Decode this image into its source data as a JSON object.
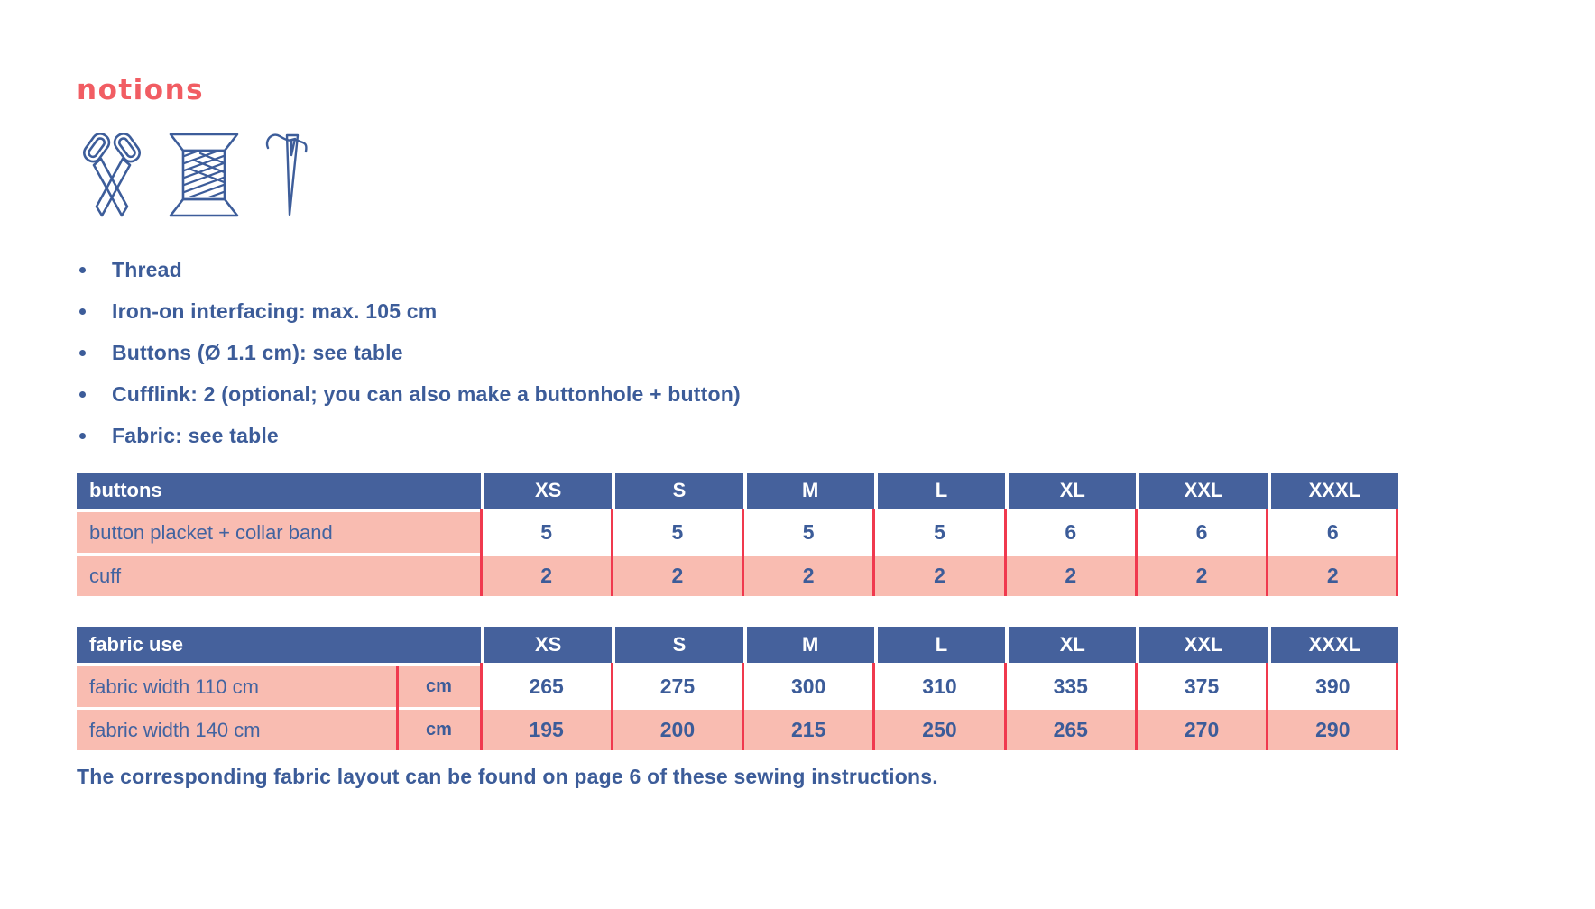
{
  "heading": "notions",
  "icons": [
    "scissors-icon",
    "thread-spool-icon",
    "needle-icon"
  ],
  "notions_list": [
    "Thread",
    "Iron-on interfacing: max. 105 cm",
    "Buttons (Ø 1.1 cm): see table",
    "Cufflink: 2 (optional; you can also make a buttonhole + button)",
    "Fabric: see table"
  ],
  "tables": [
    {
      "id": "buttons",
      "title": "buttons",
      "sizes": [
        "XS",
        "S",
        "M",
        "L",
        "XL",
        "XXL",
        "XXXL"
      ],
      "has_unit_column": false,
      "rows": [
        {
          "label": "button placket + collar band",
          "values": [
            "5",
            "5",
            "5",
            "5",
            "6",
            "6",
            "6"
          ],
          "shaded": false
        },
        {
          "label": "cuff",
          "values": [
            "2",
            "2",
            "2",
            "2",
            "2",
            "2",
            "2"
          ],
          "shaded": true
        }
      ]
    },
    {
      "id": "fabric-use",
      "title": "fabric use",
      "sizes": [
        "XS",
        "S",
        "M",
        "L",
        "XL",
        "XXL",
        "XXXL"
      ],
      "has_unit_column": true,
      "rows": [
        {
          "label": "fabric width 110 cm",
          "unit": "cm",
          "values": [
            "265",
            "275",
            "300",
            "310",
            "335",
            "375",
            "390"
          ],
          "shaded": false
        },
        {
          "label": "fabric width 140 cm",
          "unit": "cm",
          "values": [
            "195",
            "200",
            "215",
            "250",
            "265",
            "270",
            "290"
          ],
          "shaded": true
        }
      ]
    }
  ],
  "footer": "The corresponding fabric layout can be found on page 6 of these sewing instructions.",
  "colors": {
    "navy_header": "#45619c",
    "navy_text": "#3c5c99",
    "pink": "#f9bcb1",
    "red_separator": "#f0394e",
    "coral_heading": "#f15d63"
  }
}
